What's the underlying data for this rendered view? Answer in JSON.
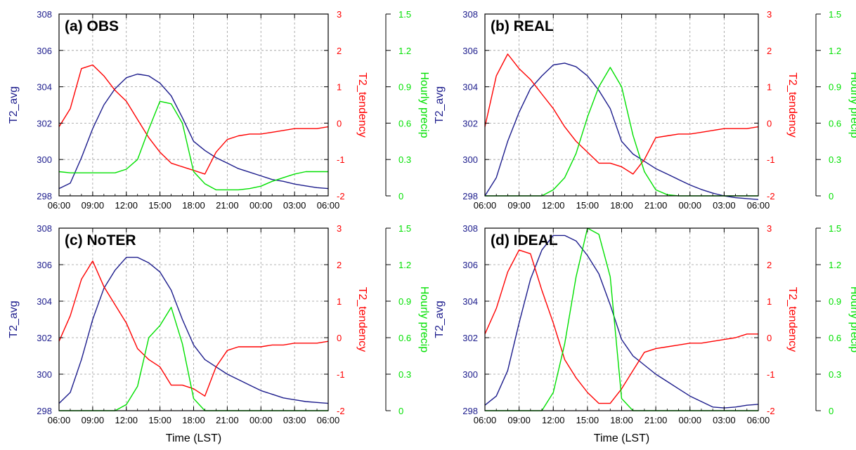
{
  "chart_data": [
    {
      "type": "line",
      "title": "(a) OBS",
      "xlabel": "",
      "ylabel_left": "T2_avg",
      "ylabel_right": "T2_tendency",
      "ylabel_right2": "Hourly precip",
      "x_tick_labels": [
        "06:00",
        "09:00",
        "12:00",
        "15:00",
        "18:00",
        "21:00",
        "00:00",
        "03:00",
        "06:00"
      ],
      "x_hours": [
        0,
        1,
        2,
        3,
        4,
        5,
        6,
        7,
        8,
        9,
        10,
        11,
        12,
        13,
        14,
        15,
        16,
        17,
        18,
        19,
        20,
        21,
        22,
        23,
        24
      ],
      "ylim_left": [
        298,
        308
      ],
      "yticks_left": [
        298,
        300,
        302,
        304,
        306,
        308
      ],
      "ylim_right": [
        -2,
        3
      ],
      "yticks_right": [
        -2,
        -1,
        0,
        1,
        2,
        3
      ],
      "ylim_right2": [
        0,
        1.5
      ],
      "yticks_right2": [
        0,
        0.3,
        0.6,
        0.9,
        1.2,
        1.5
      ],
      "grid": true,
      "series": [
        {
          "name": "T2_avg",
          "axis": "left",
          "color": "#1c1c8c",
          "values": [
            298.4,
            298.7,
            300.1,
            301.7,
            303.0,
            303.9,
            304.5,
            304.7,
            304.6,
            304.2,
            303.5,
            302.3,
            301.0,
            300.5,
            300.1,
            299.8,
            299.5,
            299.3,
            299.1,
            298.9,
            298.8,
            298.65,
            298.55,
            298.45,
            298.4
          ]
        },
        {
          "name": "T2_tendency",
          "axis": "right",
          "color": "#ff0000",
          "values": [
            -0.1,
            0.4,
            1.5,
            1.6,
            1.3,
            0.9,
            0.6,
            0.1,
            -0.4,
            -0.8,
            -1.1,
            -1.2,
            -1.3,
            -1.4,
            -0.8,
            -0.45,
            -0.35,
            -0.3,
            -0.3,
            -0.25,
            -0.2,
            -0.15,
            -0.15,
            -0.15,
            -0.1
          ]
        },
        {
          "name": "Hourly precip",
          "axis": "right2",
          "color": "#00e000",
          "values": [
            0.2,
            0.19,
            0.19,
            0.19,
            0.19,
            0.19,
            0.22,
            0.3,
            0.55,
            0.78,
            0.76,
            0.6,
            0.2,
            0.1,
            0.05,
            0.05,
            0.05,
            0.06,
            0.08,
            0.12,
            0.15,
            0.18,
            0.2,
            0.2,
            0.2
          ]
        }
      ]
    },
    {
      "type": "line",
      "title": "(b) REAL",
      "xlabel": "",
      "ylabel_left": "T2_avg",
      "ylabel_right": "T2_tendency",
      "ylabel_right2": "Hourly precip",
      "x_tick_labels": [
        "06:00",
        "09:00",
        "12:00",
        "15:00",
        "18:00",
        "21:00",
        "00:00",
        "03:00",
        "06:00"
      ],
      "x_hours": [
        0,
        1,
        2,
        3,
        4,
        5,
        6,
        7,
        8,
        9,
        10,
        11,
        12,
        13,
        14,
        15,
        16,
        17,
        18,
        19,
        20,
        21,
        22,
        23,
        24
      ],
      "ylim_left": [
        298,
        308
      ],
      "yticks_left": [
        298,
        300,
        302,
        304,
        306,
        308
      ],
      "ylim_right": [
        -2,
        3
      ],
      "yticks_right": [
        -2,
        -1,
        0,
        1,
        2,
        3
      ],
      "ylim_right2": [
        0,
        1.5
      ],
      "yticks_right2": [
        0,
        0.3,
        0.6,
        0.9,
        1.2,
        1.5
      ],
      "grid": true,
      "series": [
        {
          "name": "T2_avg",
          "axis": "left",
          "color": "#1c1c8c",
          "values": [
            298.0,
            299.0,
            301.0,
            302.6,
            303.9,
            304.6,
            305.2,
            305.3,
            305.1,
            304.6,
            303.8,
            302.8,
            301.0,
            300.3,
            299.9,
            299.5,
            299.2,
            298.9,
            298.6,
            298.35,
            298.15,
            298.0,
            297.9,
            297.85,
            297.8
          ]
        },
        {
          "name": "T2_tendency",
          "axis": "right",
          "color": "#ff0000",
          "values": [
            -0.1,
            1.3,
            1.9,
            1.5,
            1.2,
            0.8,
            0.4,
            -0.1,
            -0.5,
            -0.8,
            -1.1,
            -1.1,
            -1.2,
            -1.4,
            -1.0,
            -0.4,
            -0.35,
            -0.3,
            -0.3,
            -0.25,
            -0.2,
            -0.15,
            -0.15,
            -0.15,
            -0.1
          ]
        },
        {
          "name": "Hourly precip",
          "axis": "right2",
          "color": "#00e000",
          "values": [
            0,
            0,
            0,
            0,
            0,
            0,
            0.05,
            0.15,
            0.35,
            0.65,
            0.9,
            1.06,
            0.9,
            0.5,
            0.2,
            0.05,
            0.01,
            0,
            0,
            0,
            0,
            0,
            0,
            0,
            0
          ]
        }
      ]
    },
    {
      "type": "line",
      "title": "(c) NoTER",
      "xlabel": "Time (LST)",
      "ylabel_left": "T2_avg",
      "ylabel_right": "T2_tendency",
      "ylabel_right2": "Hourly precip",
      "x_tick_labels": [
        "06:00",
        "09:00",
        "12:00",
        "15:00",
        "18:00",
        "21:00",
        "00:00",
        "03:00",
        "06:00"
      ],
      "x_hours": [
        0,
        1,
        2,
        3,
        4,
        5,
        6,
        7,
        8,
        9,
        10,
        11,
        12,
        13,
        14,
        15,
        16,
        17,
        18,
        19,
        20,
        21,
        22,
        23,
        24
      ],
      "ylim_left": [
        298,
        308
      ],
      "yticks_left": [
        298,
        300,
        302,
        304,
        306,
        308
      ],
      "ylim_right": [
        -2,
        3
      ],
      "yticks_right": [
        -2,
        -1,
        0,
        1,
        2,
        3
      ],
      "ylim_right2": [
        0,
        1.5
      ],
      "yticks_right2": [
        0,
        0.3,
        0.6,
        0.9,
        1.2,
        1.5
      ],
      "grid": true,
      "series": [
        {
          "name": "T2_avg",
          "axis": "left",
          "color": "#1c1c8c",
          "values": [
            298.4,
            299.0,
            300.8,
            303.0,
            304.7,
            305.7,
            306.4,
            306.4,
            306.1,
            305.6,
            304.6,
            303.0,
            301.6,
            300.8,
            300.4,
            300.0,
            299.7,
            299.4,
            299.1,
            298.9,
            298.7,
            298.6,
            298.5,
            298.45,
            298.4
          ]
        },
        {
          "name": "T2_tendency",
          "axis": "right",
          "color": "#ff0000",
          "values": [
            -0.1,
            0.6,
            1.6,
            2.1,
            1.4,
            0.9,
            0.4,
            -0.3,
            -0.6,
            -0.8,
            -1.3,
            -1.3,
            -1.4,
            -1.6,
            -0.8,
            -0.35,
            -0.25,
            -0.25,
            -0.25,
            -0.2,
            -0.2,
            -0.15,
            -0.15,
            -0.15,
            -0.1
          ]
        },
        {
          "name": "Hourly precip",
          "axis": "right2",
          "color": "#00e000",
          "values": [
            0,
            0,
            0,
            0,
            0,
            0,
            0.05,
            0.2,
            0.6,
            0.7,
            0.85,
            0.55,
            0.1,
            0,
            0,
            0,
            0,
            0,
            0,
            0,
            0,
            0,
            0,
            0,
            0
          ]
        }
      ]
    },
    {
      "type": "line",
      "title": "(d) IDEAL",
      "xlabel": "Time (LST)",
      "ylabel_left": "T2_avg",
      "ylabel_right": "T2_tendency",
      "ylabel_right2": "Hourly precip",
      "x_tick_labels": [
        "06:00",
        "09:00",
        "12:00",
        "15:00",
        "18:00",
        "21:00",
        "00:00",
        "03:00",
        "06:00"
      ],
      "x_hours": [
        0,
        1,
        2,
        3,
        4,
        5,
        6,
        7,
        8,
        9,
        10,
        11,
        12,
        13,
        14,
        15,
        16,
        17,
        18,
        19,
        20,
        21,
        22,
        23,
        24
      ],
      "ylim_left": [
        298,
        308
      ],
      "yticks_left": [
        298,
        300,
        302,
        304,
        306,
        308
      ],
      "ylim_right": [
        -2,
        3
      ],
      "yticks_right": [
        -2,
        -1,
        0,
        1,
        2,
        3
      ],
      "ylim_right2": [
        0,
        1.5
      ],
      "yticks_right2": [
        0,
        0.3,
        0.6,
        0.9,
        1.2,
        1.5
      ],
      "grid": true,
      "series": [
        {
          "name": "T2_avg",
          "axis": "left",
          "color": "#1c1c8c",
          "values": [
            298.3,
            298.8,
            300.2,
            302.8,
            305.2,
            306.8,
            307.6,
            307.6,
            307.3,
            306.5,
            305.5,
            303.8,
            301.9,
            301.0,
            300.5,
            300.0,
            299.6,
            299.2,
            298.8,
            298.5,
            298.2,
            298.15,
            298.2,
            298.3,
            298.35
          ]
        },
        {
          "name": "T2_tendency",
          "axis": "right",
          "color": "#ff0000",
          "values": [
            0.1,
            0.8,
            1.8,
            2.4,
            2.3,
            1.3,
            0.4,
            -0.6,
            -1.1,
            -1.5,
            -1.8,
            -1.8,
            -1.4,
            -0.9,
            -0.4,
            -0.3,
            -0.25,
            -0.2,
            -0.15,
            -0.15,
            -0.1,
            -0.05,
            0.0,
            0.1,
            0.1
          ]
        },
        {
          "name": "Hourly precip",
          "axis": "right2",
          "color": "#00e000",
          "values": [
            0,
            0,
            0,
            0,
            0,
            0,
            0.15,
            0.55,
            1.1,
            1.5,
            1.45,
            1.1,
            0.1,
            0,
            0,
            0,
            0,
            0,
            0,
            0,
            0,
            0,
            0,
            0,
            0
          ]
        }
      ]
    }
  ]
}
